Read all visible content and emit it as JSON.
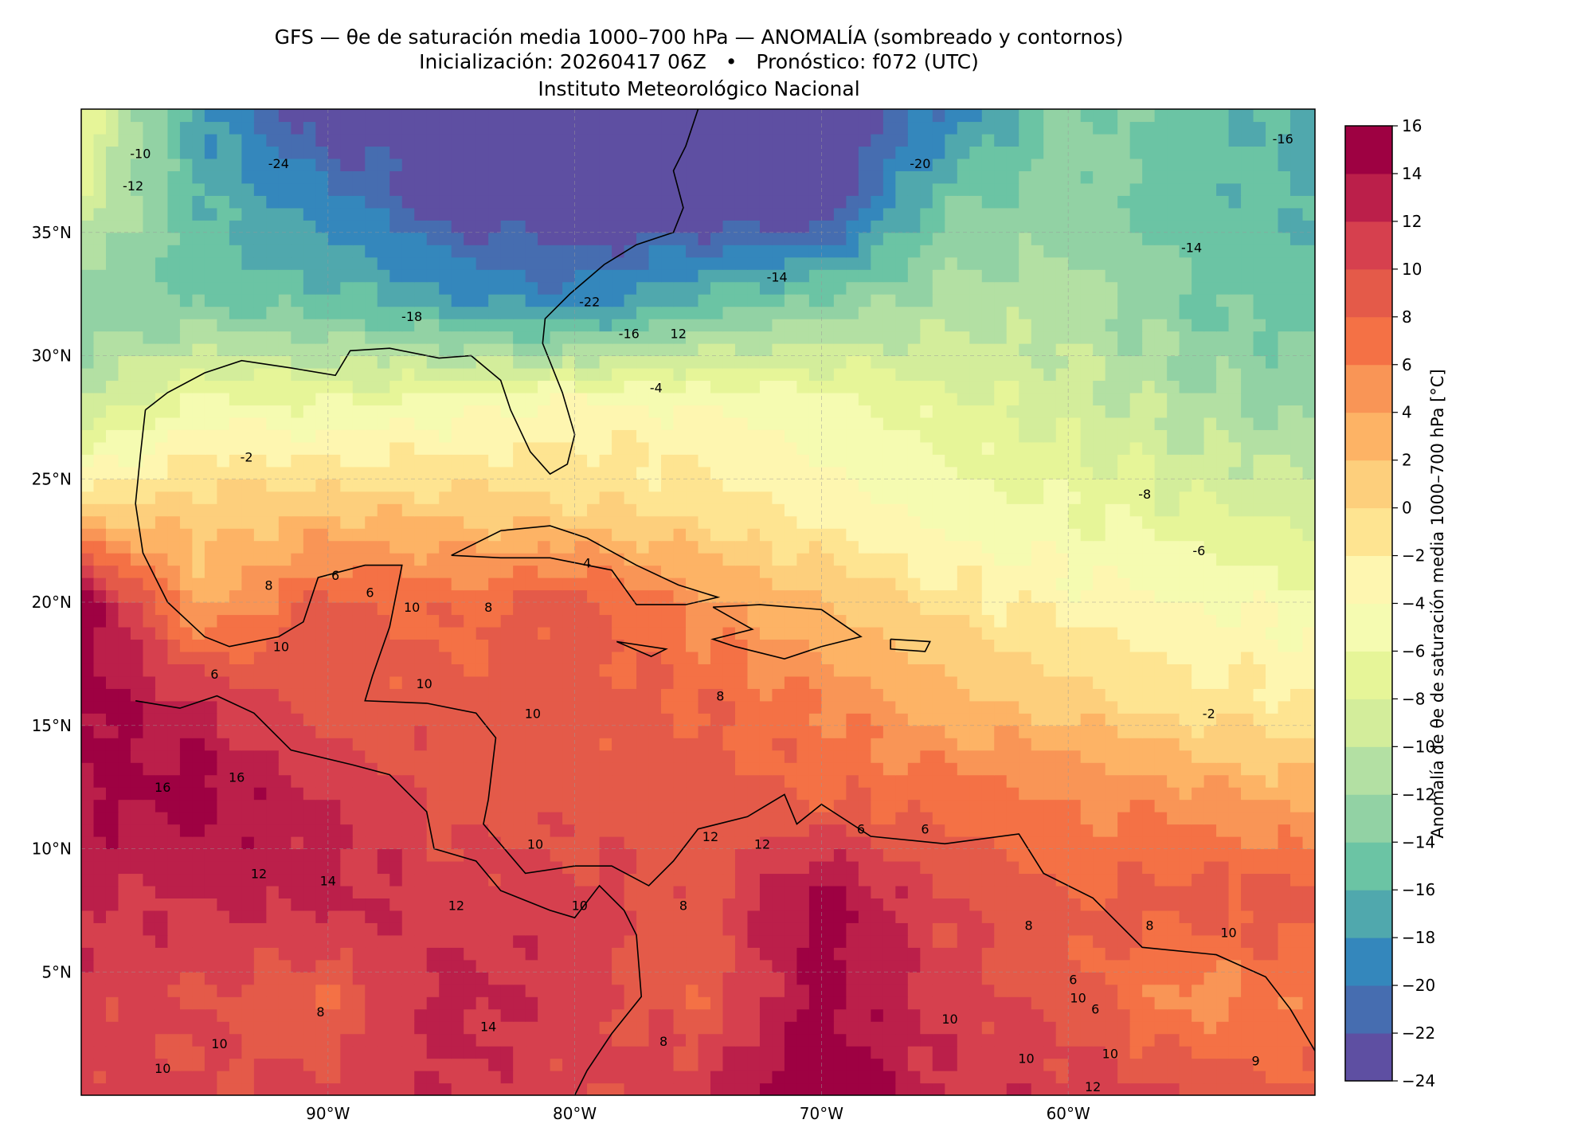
{
  "title": {
    "line1": "GFS — θe de saturación media 1000–700 hPa — ANOMALÍA (sombreado y contornos)",
    "line2": "Inicialización: 20260417 06Z   •   Pronóstico: f072 (UTC)",
    "line3": "Instituto Meteorológico Nacional"
  },
  "chart_data": {
    "type": "heatmap",
    "title": "GFS — θe de saturación media 1000–700 hPa — ANOMALÍA (sombreado y contornos)",
    "lon_range": [
      -100,
      -50
    ],
    "lat_range": [
      0,
      40
    ],
    "x_ticks": [
      {
        "value": -90,
        "label": "90°W"
      },
      {
        "value": -80,
        "label": "80°W"
      },
      {
        "value": -70,
        "label": "70°W"
      },
      {
        "value": -60,
        "label": "60°W"
      }
    ],
    "y_ticks": [
      {
        "value": 5,
        "label": "5°N"
      },
      {
        "value": 10,
        "label": "10°N"
      },
      {
        "value": 15,
        "label": "15°N"
      },
      {
        "value": 20,
        "label": "20°N"
      },
      {
        "value": 25,
        "label": "25°N"
      },
      {
        "value": 30,
        "label": "30°N"
      },
      {
        "value": 35,
        "label": "35°N"
      }
    ],
    "grid": true,
    "grid_lons": [
      -100,
      -95,
      -90,
      -85,
      -80,
      -75,
      -70,
      -65,
      -60,
      -55,
      -50
    ],
    "grid_lats": [
      40,
      36,
      32,
      28,
      24,
      20,
      16,
      12,
      8,
      4,
      0
    ],
    "anomaly_grid": [
      [
        -6,
        -18,
        -24,
        -24,
        -24,
        -24,
        -24,
        -20,
        -13,
        -15,
        -17
      ],
      [
        -9,
        -16,
        -19,
        -23,
        -24,
        -24,
        -24,
        -14,
        -13,
        -15,
        -16
      ],
      [
        -13,
        -14,
        -15,
        -17,
        -19,
        -15,
        -13,
        -11,
        -11,
        -14,
        -15
      ],
      [
        -10,
        -5,
        -6,
        -5,
        -3,
        -4,
        -5,
        -7,
        -9,
        -11,
        -13
      ],
      [
        -1,
        1,
        1,
        1,
        0,
        -1,
        -3,
        -5,
        -6,
        -8,
        -9
      ],
      [
        16,
        3,
        9,
        7,
        9,
        5,
        2,
        -1,
        -3,
        -4,
        -5
      ],
      [
        15,
        12,
        9,
        9,
        9,
        8,
        6,
        3,
        1,
        -1,
        -2
      ],
      [
        14,
        15,
        12,
        9,
        9,
        9,
        8,
        7,
        6,
        5,
        3
      ],
      [
        12,
        12,
        13,
        11,
        11,
        9,
        15,
        10,
        8,
        9,
        9
      ],
      [
        11,
        10,
        8,
        13,
        11,
        8,
        15,
        11,
        9,
        5,
        7
      ],
      [
        11,
        10,
        11,
        12,
        10,
        12,
        16,
        12,
        11,
        10,
        8
      ]
    ],
    "contour_labels": [
      {
        "text": "-24",
        "lon": -92,
        "lat": 37.8
      },
      {
        "text": "-22",
        "lon": -79.4,
        "lat": 32.2
      },
      {
        "text": "-18",
        "lon": -86.6,
        "lat": 31.6
      },
      {
        "text": "-16",
        "lon": -77.8,
        "lat": 30.9
      },
      {
        "text": "12",
        "lon": -75.8,
        "lat": 30.9
      },
      {
        "text": "-14",
        "lon": -71.8,
        "lat": 33.2
      },
      {
        "text": "-20",
        "lon": -66,
        "lat": 37.8
      },
      {
        "text": "-14",
        "lon": -55,
        "lat": 34.4
      },
      {
        "text": "-16",
        "lon": -51.3,
        "lat": 38.8
      },
      {
        "text": "-12",
        "lon": -97.9,
        "lat": 36.9
      },
      {
        "text": "-10",
        "lon": -97.6,
        "lat": 38.2
      },
      {
        "text": "-4",
        "lon": -76.7,
        "lat": 28.7
      },
      {
        "text": "-2",
        "lon": -93.3,
        "lat": 25.9
      },
      {
        "text": "-8",
        "lon": -56.9,
        "lat": 24.4
      },
      {
        "text": "-6",
        "lon": -54.7,
        "lat": 22.1
      },
      {
        "text": "-2",
        "lon": -54.3,
        "lat": 15.5
      },
      {
        "text": "4",
        "lon": -79.5,
        "lat": 21.6
      },
      {
        "text": "6",
        "lon": -89.7,
        "lat": 21.1
      },
      {
        "text": "6",
        "lon": -88.3,
        "lat": 20.4
      },
      {
        "text": "8",
        "lon": -92.4,
        "lat": 20.7
      },
      {
        "text": "10",
        "lon": -86.6,
        "lat": 19.8
      },
      {
        "text": "8",
        "lon": -83.5,
        "lat": 19.8
      },
      {
        "text": "10",
        "lon": -91.9,
        "lat": 18.2
      },
      {
        "text": "6",
        "lon": -94.6,
        "lat": 17.1
      },
      {
        "text": "10",
        "lon": -86.1,
        "lat": 16.7
      },
      {
        "text": "10",
        "lon": -81.7,
        "lat": 15.5
      },
      {
        "text": "8",
        "lon": -74.1,
        "lat": 16.2
      },
      {
        "text": "16",
        "lon": -93.7,
        "lat": 12.9
      },
      {
        "text": "16",
        "lon": -96.7,
        "lat": 12.5
      },
      {
        "text": "14",
        "lon": -90,
        "lat": 8.7
      },
      {
        "text": "12",
        "lon": -92.8,
        "lat": 9
      },
      {
        "text": "12",
        "lon": -84.8,
        "lat": 7.7
      },
      {
        "text": "10",
        "lon": -81.6,
        "lat": 10.2
      },
      {
        "text": "12",
        "lon": -74.5,
        "lat": 10.5
      },
      {
        "text": "12",
        "lon": -72.4,
        "lat": 10.2
      },
      {
        "text": "6",
        "lon": -68.4,
        "lat": 10.8
      },
      {
        "text": "6",
        "lon": -65.8,
        "lat": 10.8
      },
      {
        "text": "8",
        "lon": -75.6,
        "lat": 7.7
      },
      {
        "text": "10",
        "lon": -79.8,
        "lat": 7.7
      },
      {
        "text": "8",
        "lon": -61.6,
        "lat": 6.9
      },
      {
        "text": "8",
        "lon": -56.7,
        "lat": 6.9
      },
      {
        "text": "10",
        "lon": -53.5,
        "lat": 6.6
      },
      {
        "text": "6",
        "lon": -59.8,
        "lat": 4.7
      },
      {
        "text": "10",
        "lon": -59.6,
        "lat": 4.6
      },
      {
        "text": "10",
        "lon": -64.8,
        "lat": 3.1
      },
      {
        "text": "6",
        "lon": -58.9,
        "lat": 3.5
      },
      {
        "text": "14",
        "lon": -83.5,
        "lat": 2.8
      },
      {
        "text": "8",
        "lon": -90.3,
        "lat": 3.4
      },
      {
        "text": "10",
        "lon": -94.4,
        "lat": 2.1
      },
      {
        "text": "10",
        "lon": -96.7,
        "lat": 1.1
      },
      {
        "text": "8",
        "lon": -76.4,
        "lat": 2.2
      },
      {
        "text": "10",
        "lon": -58.3,
        "lat": 1.7
      },
      {
        "text": "12",
        "lon": -59,
        "lat": 1
      },
      {
        "text": "10",
        "lon": -61.7,
        "lat": 1.5
      },
      {
        "text": "9",
        "lon": -52.4,
        "lat": 1.4
      }
    ],
    "colorbar": {
      "label": "Anomalía de θe de saturación media 1000–700 hPa [°C]",
      "levels": [
        -24,
        -22,
        -20,
        -18,
        -16,
        -14,
        -12,
        -10,
        -8,
        -6,
        -4,
        -2,
        0,
        2,
        4,
        6,
        8,
        10,
        12,
        14,
        16
      ],
      "tick_labels": [
        "−24",
        "−22",
        "−20",
        "−18",
        "−16",
        "−14",
        "−12",
        "−10",
        "−8",
        "−6",
        "−4",
        "−2",
        "0",
        "2",
        "4",
        "6",
        "8",
        "10",
        "12",
        "14",
        "16"
      ],
      "colors": [
        "#5e4fa2",
        "#466db0",
        "#3487bc",
        "#50a8ad",
        "#6bc4a4",
        "#92d2a4",
        "#b3e0a3",
        "#d3ed9b",
        "#e6f598",
        "#f5fbb1",
        "#fef6b0",
        "#fee491",
        "#fdcf7c",
        "#fdb365",
        "#f99556",
        "#f47145",
        "#e45a49",
        "#d6404e",
        "#bb1f4a",
        "#9e0142"
      ]
    },
    "coastline": [
      [
        [
          -97.4,
          27.8
        ],
        [
          -96.5,
          28.5
        ],
        [
          -95,
          29.3
        ],
        [
          -93.5,
          29.8
        ],
        [
          -91.5,
          29.5
        ],
        [
          -89.7,
          29.2
        ],
        [
          -89.1,
          30.2
        ],
        [
          -87.5,
          30.3
        ],
        [
          -85.5,
          29.9
        ],
        [
          -84.2,
          30
        ],
        [
          -83,
          29
        ],
        [
          -82.6,
          27.8
        ],
        [
          -81.8,
          26.1
        ],
        [
          -81,
          25.2
        ],
        [
          -80.3,
          25.6
        ],
        [
          -80,
          26.8
        ],
        [
          -80.5,
          28.5
        ],
        [
          -81.3,
          30.5
        ],
        [
          -81.2,
          31.5
        ],
        [
          -80.2,
          32.5
        ],
        [
          -78.8,
          33.7
        ],
        [
          -77.5,
          34.5
        ],
        [
          -76,
          35
        ],
        [
          -75.6,
          36
        ],
        [
          -76,
          37.5
        ],
        [
          -75.5,
          38.5
        ],
        [
          -75,
          40
        ]
      ],
      [
        [
          -97.4,
          27.8
        ],
        [
          -97.6,
          26
        ],
        [
          -97.8,
          24
        ],
        [
          -97.5,
          22
        ],
        [
          -96.5,
          20
        ],
        [
          -95,
          18.6
        ],
        [
          -94,
          18.2
        ],
        [
          -92,
          18.6
        ],
        [
          -91,
          19.2
        ],
        [
          -90.4,
          21
        ],
        [
          -88.5,
          21.5
        ],
        [
          -87,
          21.5
        ],
        [
          -87.5,
          19
        ],
        [
          -88.2,
          17
        ],
        [
          -88.5,
          16
        ],
        [
          -86,
          15.9
        ],
        [
          -84,
          15.5
        ],
        [
          -83.2,
          14.5
        ],
        [
          -83.5,
          12
        ],
        [
          -83.7,
          11
        ],
        [
          -82,
          9
        ],
        [
          -80,
          9.3
        ],
        [
          -78.5,
          9.3
        ],
        [
          -77,
          8.5
        ],
        [
          -76,
          9.5
        ],
        [
          -75,
          10.8
        ],
        [
          -73,
          11.3
        ],
        [
          -71.5,
          12.2
        ],
        [
          -71,
          11
        ],
        [
          -70,
          11.8
        ],
        [
          -68,
          10.5
        ],
        [
          -65,
          10.2
        ],
        [
          -62,
          10.6
        ],
        [
          -61,
          9
        ],
        [
          -59,
          8
        ],
        [
          -57,
          6
        ],
        [
          -54,
          5.7
        ],
        [
          -52,
          4.8
        ],
        [
          -51,
          3.5
        ],
        [
          -50,
          1.8
        ]
      ],
      [
        [
          -97.8,
          16
        ],
        [
          -96,
          15.7
        ],
        [
          -94.5,
          16.2
        ],
        [
          -93,
          15.5
        ],
        [
          -91.5,
          14
        ],
        [
          -89,
          13.4
        ],
        [
          -87.5,
          13
        ],
        [
          -86,
          11.5
        ],
        [
          -85.7,
          10
        ],
        [
          -84,
          9.5
        ],
        [
          -83,
          8.3
        ],
        [
          -81,
          7.5
        ],
        [
          -80,
          7.2
        ],
        [
          -79,
          8.5
        ],
        [
          -78,
          7.5
        ],
        [
          -77.5,
          6.5
        ],
        [
          -77.3,
          4
        ],
        [
          -78.5,
          2.5
        ],
        [
          -79.5,
          1
        ],
        [
          -80,
          0
        ]
      ],
      [
        [
          -85,
          21.9
        ],
        [
          -83,
          22.9
        ],
        [
          -81,
          23.1
        ],
        [
          -79.5,
          22.6
        ],
        [
          -77.5,
          21.5
        ],
        [
          -75.8,
          20.7
        ],
        [
          -74.2,
          20.2
        ],
        [
          -75.5,
          19.9
        ],
        [
          -77.5,
          19.9
        ],
        [
          -78.5,
          21.3
        ],
        [
          -81,
          21.8
        ],
        [
          -83,
          21.8
        ],
        [
          -85,
          21.9
        ]
      ],
      [
        [
          -74.4,
          19.8
        ],
        [
          -72.5,
          19.9
        ],
        [
          -70,
          19.7
        ],
        [
          -68.4,
          18.6
        ],
        [
          -70,
          18.2
        ],
        [
          -71.5,
          17.7
        ],
        [
          -73.5,
          18.2
        ],
        [
          -74.4,
          18.5
        ],
        [
          -72.8,
          18.9
        ],
        [
          -74.4,
          19.8
        ]
      ],
      [
        [
          -78.3,
          18.4
        ],
        [
          -76.3,
          18.1
        ],
        [
          -76.9,
          17.8
        ],
        [
          -78.3,
          18.4
        ]
      ],
      [
        [
          -67.2,
          18.5
        ],
        [
          -65.6,
          18.4
        ],
        [
          -65.8,
          18
        ],
        [
          -67.2,
          18.1
        ],
        [
          -67.2,
          18.5
        ]
      ]
    ]
  }
}
